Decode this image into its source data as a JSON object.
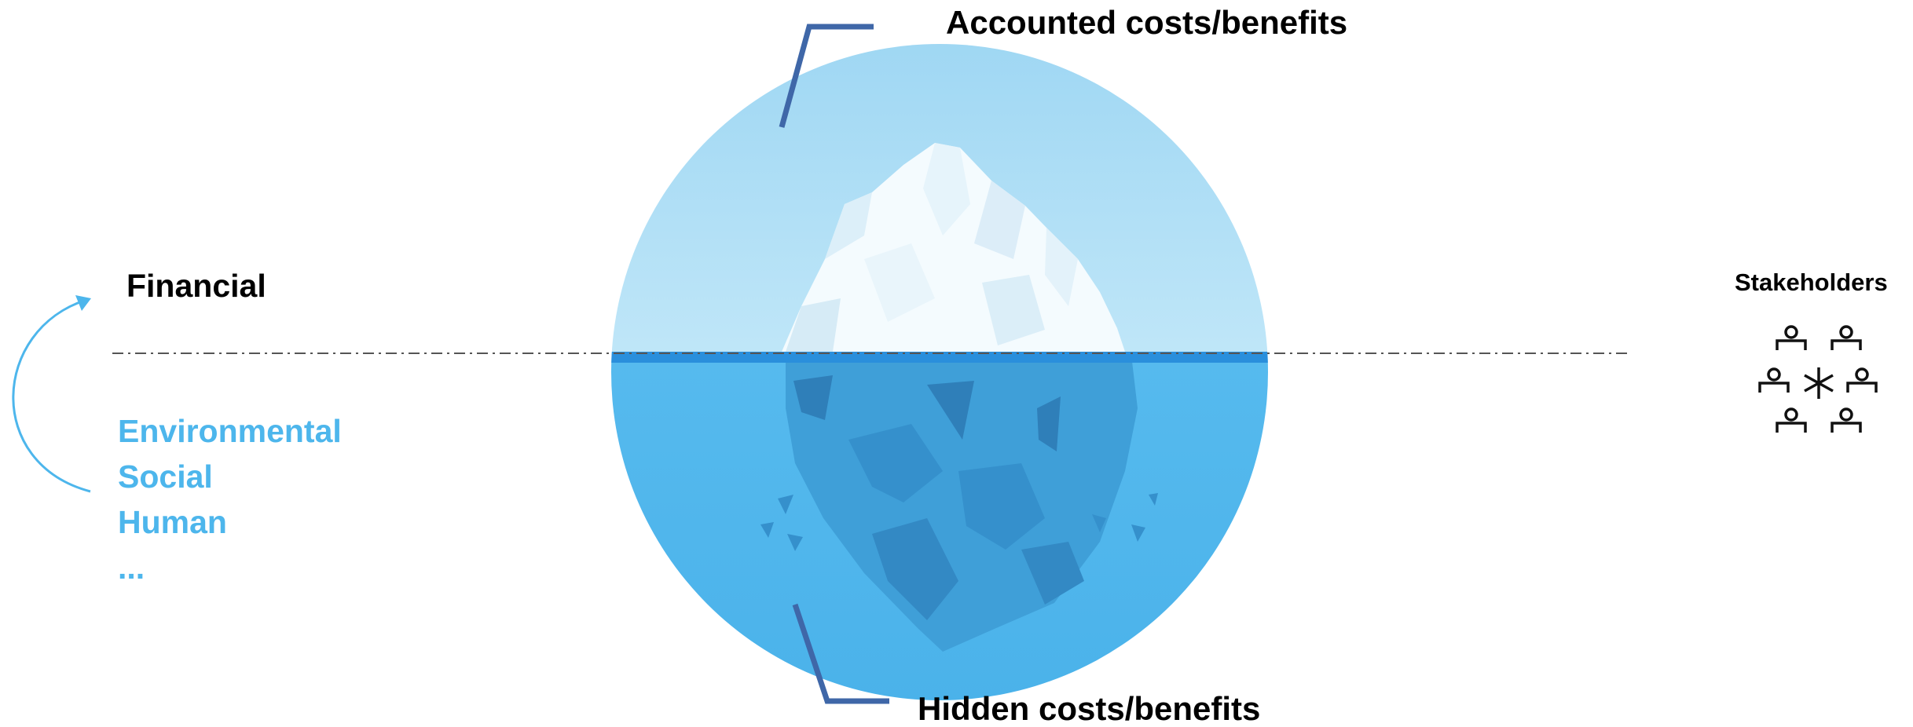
{
  "iceberg": {
    "top_label": "Accounted costs/benefits",
    "bottom_label": "Hidden costs/benefits"
  },
  "capitals": {
    "visible": "Financial",
    "hidden": [
      "Environmental",
      "Social",
      "Human",
      "..."
    ]
  },
  "stakeholders": {
    "title": "Stakeholders",
    "icon": "stakeholders-network-icon"
  },
  "colors": {
    "sky": "#a8dcf5",
    "water": "#55b9ee",
    "waterline": "#2a8fdc",
    "hidden_text": "#4db6ec",
    "callout": "#3f67a8"
  }
}
